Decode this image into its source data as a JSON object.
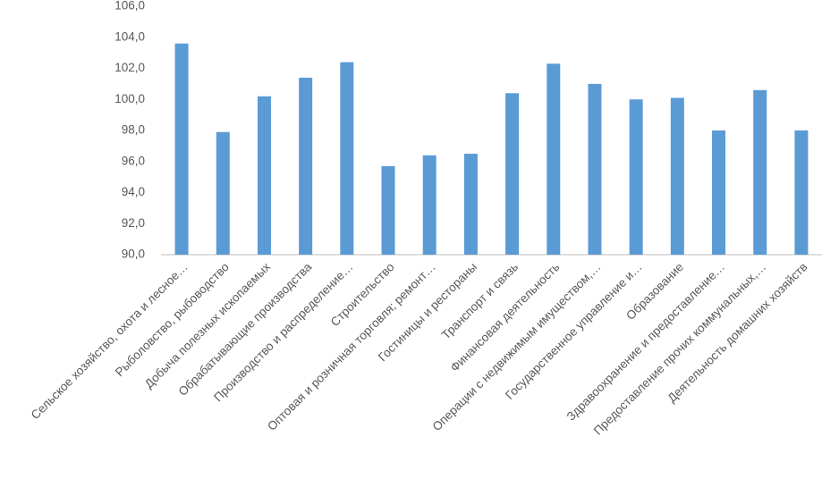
{
  "chart_data": {
    "type": "bar",
    "categories": [
      "Сельское хозяйство, охота и лесное…",
      "Рыболовство, рыбоводство",
      "Добыча полезных ископаемых",
      "Обрабатывающие производства",
      "Производство и распределение…",
      "Строительство",
      "Оптовая и розничная торговля; ремонт…",
      "Гостиницы и рестораны",
      "Транспорт и связь",
      "Финансовая деятельность",
      "Операции с недвижимым имуществом,…",
      "Государственное управление и…",
      "Образование",
      "Здравоохранение и предоставление…",
      "Предоставление прочих коммунальных,…",
      "Деятельность домашних хозяйств"
    ],
    "values": [
      103.6,
      97.9,
      100.2,
      101.4,
      102.4,
      95.7,
      96.4,
      96.5,
      100.4,
      102.3,
      101.0,
      100.0,
      100.1,
      98.0,
      100.6,
      98.0
    ],
    "color": "#5b9bd5",
    "ylim": [
      90,
      106
    ],
    "yticks": [
      {
        "value": 90,
        "label": "90,0"
      },
      {
        "value": 92,
        "label": "92,0"
      },
      {
        "value": 94,
        "label": "94,0"
      },
      {
        "value": 96,
        "label": "96,0"
      },
      {
        "value": 98,
        "label": "98,0"
      },
      {
        "value": 100,
        "label": "100,0"
      },
      {
        "value": 102,
        "label": "102,0"
      },
      {
        "value": 104,
        "label": "104,0"
      },
      {
        "value": 106,
        "label": "106,0"
      }
    ],
    "grid": false
  }
}
